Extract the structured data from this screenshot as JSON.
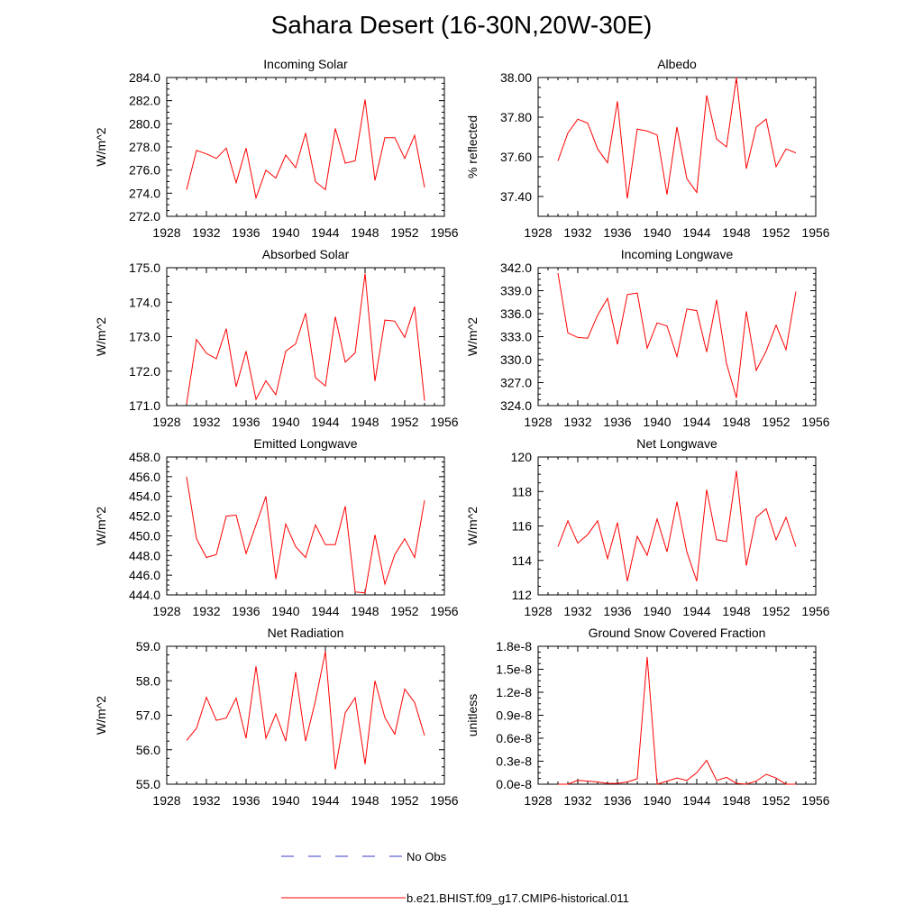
{
  "title": "Sahara Desert (16-30N,20W-30E)",
  "legend": {
    "obs_label": "No Obs",
    "model_label": "b.e21.BHIST.f09_g17.CMIP6-historical.011",
    "obs_color": "#3a3acf",
    "model_color": "#ff0000"
  },
  "chart_data": [
    {
      "type": "line",
      "title": "Incoming Solar",
      "ylabel": "W/m^2",
      "xlim": [
        1928,
        1956
      ],
      "ylim": [
        272,
        284
      ],
      "xticks": [
        "1928",
        "1932",
        "1936",
        "1940",
        "1944",
        "1948",
        "1952",
        "1956"
      ],
      "yticks": [
        "272.0",
        "274.0",
        "276.0",
        "278.0",
        "280.0",
        "282.0",
        "284.0"
      ],
      "x": [
        1930,
        1931,
        1932,
        1933,
        1934,
        1935,
        1936,
        1937,
        1938,
        1939,
        1940,
        1941,
        1942,
        1943,
        1944,
        1945,
        1946,
        1947,
        1948,
        1949,
        1950,
        1951,
        1952,
        1953,
        1954
      ],
      "series": [
        {
          "name": "b.e21.BHIST.f09_g17.CMIP6-historical.011",
          "values": [
            274.3,
            277.7,
            277.4,
            277.0,
            277.9,
            274.9,
            277.9,
            273.6,
            276.0,
            275.3,
            277.3,
            276.2,
            279.2,
            275.0,
            274.3,
            279.6,
            276.6,
            276.8,
            282.1,
            275.1,
            278.8,
            278.8,
            277.0,
            279.0,
            274.5
          ]
        }
      ]
    },
    {
      "type": "line",
      "title": "Albedo",
      "ylabel": "% reflected",
      "xlim": [
        1928,
        1956
      ],
      "ylim": [
        37.3,
        38.0
      ],
      "xticks": [
        "1928",
        "1932",
        "1936",
        "1940",
        "1944",
        "1948",
        "1952",
        "1956"
      ],
      "yticks": [
        "37.40",
        "37.60",
        "37.80",
        "38.00"
      ],
      "ytick_values": [
        37.4,
        37.6,
        37.8,
        38.0
      ],
      "x": [
        1930,
        1931,
        1932,
        1933,
        1934,
        1935,
        1936,
        1937,
        1938,
        1939,
        1940,
        1941,
        1942,
        1943,
        1944,
        1945,
        1946,
        1947,
        1948,
        1949,
        1950,
        1951,
        1952,
        1953,
        1954
      ],
      "series": [
        {
          "name": "b.e21.BHIST.f09_g17.CMIP6-historical.011",
          "values": [
            37.58,
            37.72,
            37.79,
            37.77,
            37.64,
            37.57,
            37.88,
            37.39,
            37.74,
            37.73,
            37.71,
            37.41,
            37.75,
            37.49,
            37.42,
            37.91,
            37.69,
            37.65,
            38.0,
            37.54,
            37.75,
            37.79,
            37.55,
            37.64,
            37.62
          ]
        }
      ]
    },
    {
      "type": "line",
      "title": "Absorbed Solar",
      "ylabel": "W/m^2",
      "xlim": [
        1928,
        1956
      ],
      "ylim": [
        171,
        175
      ],
      "xticks": [
        "1928",
        "1932",
        "1936",
        "1940",
        "1944",
        "1948",
        "1952",
        "1956"
      ],
      "yticks": [
        "171.0",
        "172.0",
        "173.0",
        "174.0",
        "175.0"
      ],
      "x": [
        1930,
        1931,
        1932,
        1933,
        1934,
        1935,
        1936,
        1937,
        1938,
        1939,
        1940,
        1941,
        1942,
        1943,
        1944,
        1945,
        1946,
        1947,
        1948,
        1949,
        1950,
        1951,
        1952,
        1953,
        1954
      ],
      "series": [
        {
          "name": "b.e21.BHIST.f09_g17.CMIP6-historical.011",
          "values": [
            171.05,
            172.92,
            172.52,
            172.36,
            173.23,
            171.55,
            172.58,
            171.18,
            171.72,
            171.31,
            172.58,
            172.79,
            173.68,
            171.81,
            171.57,
            173.58,
            172.26,
            172.53,
            174.83,
            171.71,
            173.48,
            173.45,
            172.98,
            173.87,
            171.14
          ]
        }
      ]
    },
    {
      "type": "line",
      "title": "Incoming Longwave",
      "ylabel": "W/m^2",
      "xlim": [
        1928,
        1956
      ],
      "ylim": [
        324,
        342
      ],
      "xticks": [
        "1928",
        "1932",
        "1936",
        "1940",
        "1944",
        "1948",
        "1952",
        "1956"
      ],
      "yticks": [
        "324.0",
        "327.0",
        "330.0",
        "333.0",
        "336.0",
        "339.0",
        "342.0"
      ],
      "x": [
        1930,
        1931,
        1932,
        1933,
        1934,
        1935,
        1936,
        1937,
        1938,
        1939,
        1940,
        1941,
        1942,
        1943,
        1944,
        1945,
        1946,
        1947,
        1948,
        1949,
        1950,
        1951,
        1952,
        1953,
        1954
      ],
      "series": [
        {
          "name": "b.e21.BHIST.f09_g17.CMIP6-historical.011",
          "values": [
            341.3,
            333.5,
            332.9,
            332.8,
            335.8,
            338.0,
            332.0,
            338.5,
            338.7,
            331.5,
            334.8,
            334.4,
            330.4,
            336.6,
            336.4,
            331.0,
            337.8,
            329.5,
            325.0,
            336.3,
            328.6,
            331.1,
            334.5,
            331.3,
            338.9
          ]
        }
      ]
    },
    {
      "type": "line",
      "title": "Emitted Longwave",
      "ylabel": "W/m^2",
      "xlim": [
        1928,
        1956
      ],
      "ylim": [
        444,
        458
      ],
      "xticks": [
        "1928",
        "1932",
        "1936",
        "1940",
        "1944",
        "1948",
        "1952",
        "1956"
      ],
      "yticks": [
        "444.0",
        "446.0",
        "448.0",
        "450.0",
        "452.0",
        "454.0",
        "456.0",
        "458.0"
      ],
      "x": [
        1930,
        1931,
        1932,
        1933,
        1934,
        1935,
        1936,
        1937,
        1938,
        1939,
        1940,
        1941,
        1942,
        1943,
        1944,
        1945,
        1946,
        1947,
        1948,
        1949,
        1950,
        1951,
        1952,
        1953,
        1954
      ],
      "series": [
        {
          "name": "b.e21.BHIST.f09_g17.CMIP6-historical.011",
          "values": [
            456.0,
            449.7,
            447.8,
            448.1,
            452.0,
            452.1,
            448.2,
            451.1,
            454.0,
            445.6,
            451.2,
            448.9,
            447.8,
            451.1,
            449.1,
            449.1,
            453.0,
            444.3,
            444.2,
            450.1,
            445.1,
            448.1,
            449.7,
            447.8,
            453.6
          ]
        }
      ]
    },
    {
      "type": "line",
      "title": "Net Longwave",
      "ylabel": "W/m^2",
      "xlim": [
        1928,
        1956
      ],
      "ylim": [
        112,
        120
      ],
      "xticks": [
        "1928",
        "1932",
        "1936",
        "1940",
        "1944",
        "1948",
        "1952",
        "1956"
      ],
      "yticks": [
        "112",
        "114",
        "116",
        "118",
        "120"
      ],
      "x": [
        1930,
        1931,
        1932,
        1933,
        1934,
        1935,
        1936,
        1937,
        1938,
        1939,
        1940,
        1941,
        1942,
        1943,
        1944,
        1945,
        1946,
        1947,
        1948,
        1949,
        1950,
        1951,
        1952,
        1953,
        1954
      ],
      "series": [
        {
          "name": "b.e21.BHIST.f09_g17.CMIP6-historical.011",
          "values": [
            114.8,
            116.3,
            115.0,
            115.5,
            116.3,
            114.1,
            116.2,
            112.8,
            115.4,
            114.3,
            116.4,
            114.5,
            117.4,
            114.5,
            112.8,
            118.1,
            115.2,
            115.1,
            119.2,
            113.7,
            116.5,
            117.0,
            115.2,
            116.5,
            114.8
          ]
        }
      ]
    },
    {
      "type": "line",
      "title": "Net Radiation",
      "ylabel": "W/m^2",
      "xlim": [
        1928,
        1956
      ],
      "ylim": [
        55,
        59
      ],
      "xticks": [
        "1928",
        "1932",
        "1936",
        "1940",
        "1944",
        "1948",
        "1952",
        "1956"
      ],
      "yticks": [
        "55.0",
        "56.0",
        "57.0",
        "58.0",
        "59.0"
      ],
      "x": [
        1930,
        1931,
        1932,
        1933,
        1934,
        1935,
        1936,
        1937,
        1938,
        1939,
        1940,
        1941,
        1942,
        1943,
        1944,
        1945,
        1946,
        1947,
        1948,
        1949,
        1950,
        1951,
        1952,
        1953,
        1954
      ],
      "series": [
        {
          "name": "b.e21.BHIST.f09_g17.CMIP6-historical.011",
          "values": [
            56.27,
            56.62,
            57.52,
            56.85,
            56.92,
            57.5,
            56.33,
            58.42,
            56.33,
            57.04,
            56.25,
            58.25,
            56.25,
            57.42,
            58.85,
            55.43,
            57.07,
            57.51,
            55.58,
            58.0,
            56.93,
            56.45,
            57.76,
            57.37,
            56.41
          ]
        }
      ]
    },
    {
      "type": "line",
      "title": "Ground Snow Covered Fraction",
      "ylabel": "unitless",
      "xlim": [
        1928,
        1956
      ],
      "ylim": [
        0,
        1.8e-08
      ],
      "xticks": [
        "1928",
        "1932",
        "1936",
        "1940",
        "1944",
        "1948",
        "1952",
        "1956"
      ],
      "yticks": [
        "0.0e-8",
        "0.3e-8",
        "0.6e-8",
        "0.9e-8",
        "1.2e-8",
        "1.5e-8",
        "1.8e-8"
      ],
      "x": [
        1930,
        1931,
        1932,
        1933,
        1934,
        1935,
        1936,
        1937,
        1938,
        1939,
        1940,
        1941,
        1942,
        1943,
        1944,
        1945,
        1946,
        1947,
        1948,
        1949,
        1950,
        1951,
        1952,
        1953,
        1954
      ],
      "series": [
        {
          "name": "b.e21.BHIST.f09_g17.CMIP6-historical.011",
          "values": [
            0.0,
            0.0,
            5e-10,
            4e-10,
            3e-10,
            1e-10,
            1e-10,
            3e-10,
            7e-10,
            1.66e-08,
            0.0,
            4e-10,
            8e-10,
            5e-10,
            1.5e-09,
            3.1e-09,
            5e-10,
            9e-10,
            1e-10,
            0.0,
            4e-10,
            1.3e-09,
            8e-10,
            0.0,
            0.0
          ]
        }
      ]
    }
  ]
}
